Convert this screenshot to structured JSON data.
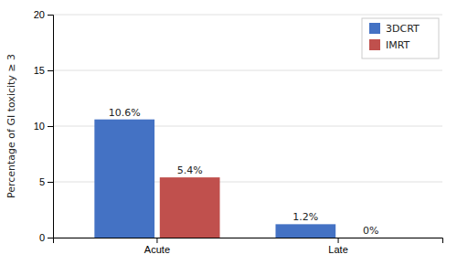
{
  "chart_data": {
    "type": "bar",
    "categories": [
      "Acute",
      "Late"
    ],
    "series": [
      {
        "name": "3DCRT",
        "color": "#4472c4",
        "values": [
          10.6,
          1.2
        ],
        "value_labels": [
          "10.6%",
          "1.2%"
        ]
      },
      {
        "name": "IMRT",
        "color": "#c0504d",
        "values": [
          5.4,
          0.0
        ],
        "value_labels": [
          "5.4%",
          "0%"
        ]
      }
    ],
    "ylabel": "Percentage of GI toxicity ≥ 3",
    "ylim": [
      0,
      20
    ],
    "yticks": [
      0,
      5,
      10,
      15,
      20
    ],
    "grid": true,
    "legend": "upper right",
    "data_labels": true
  }
}
